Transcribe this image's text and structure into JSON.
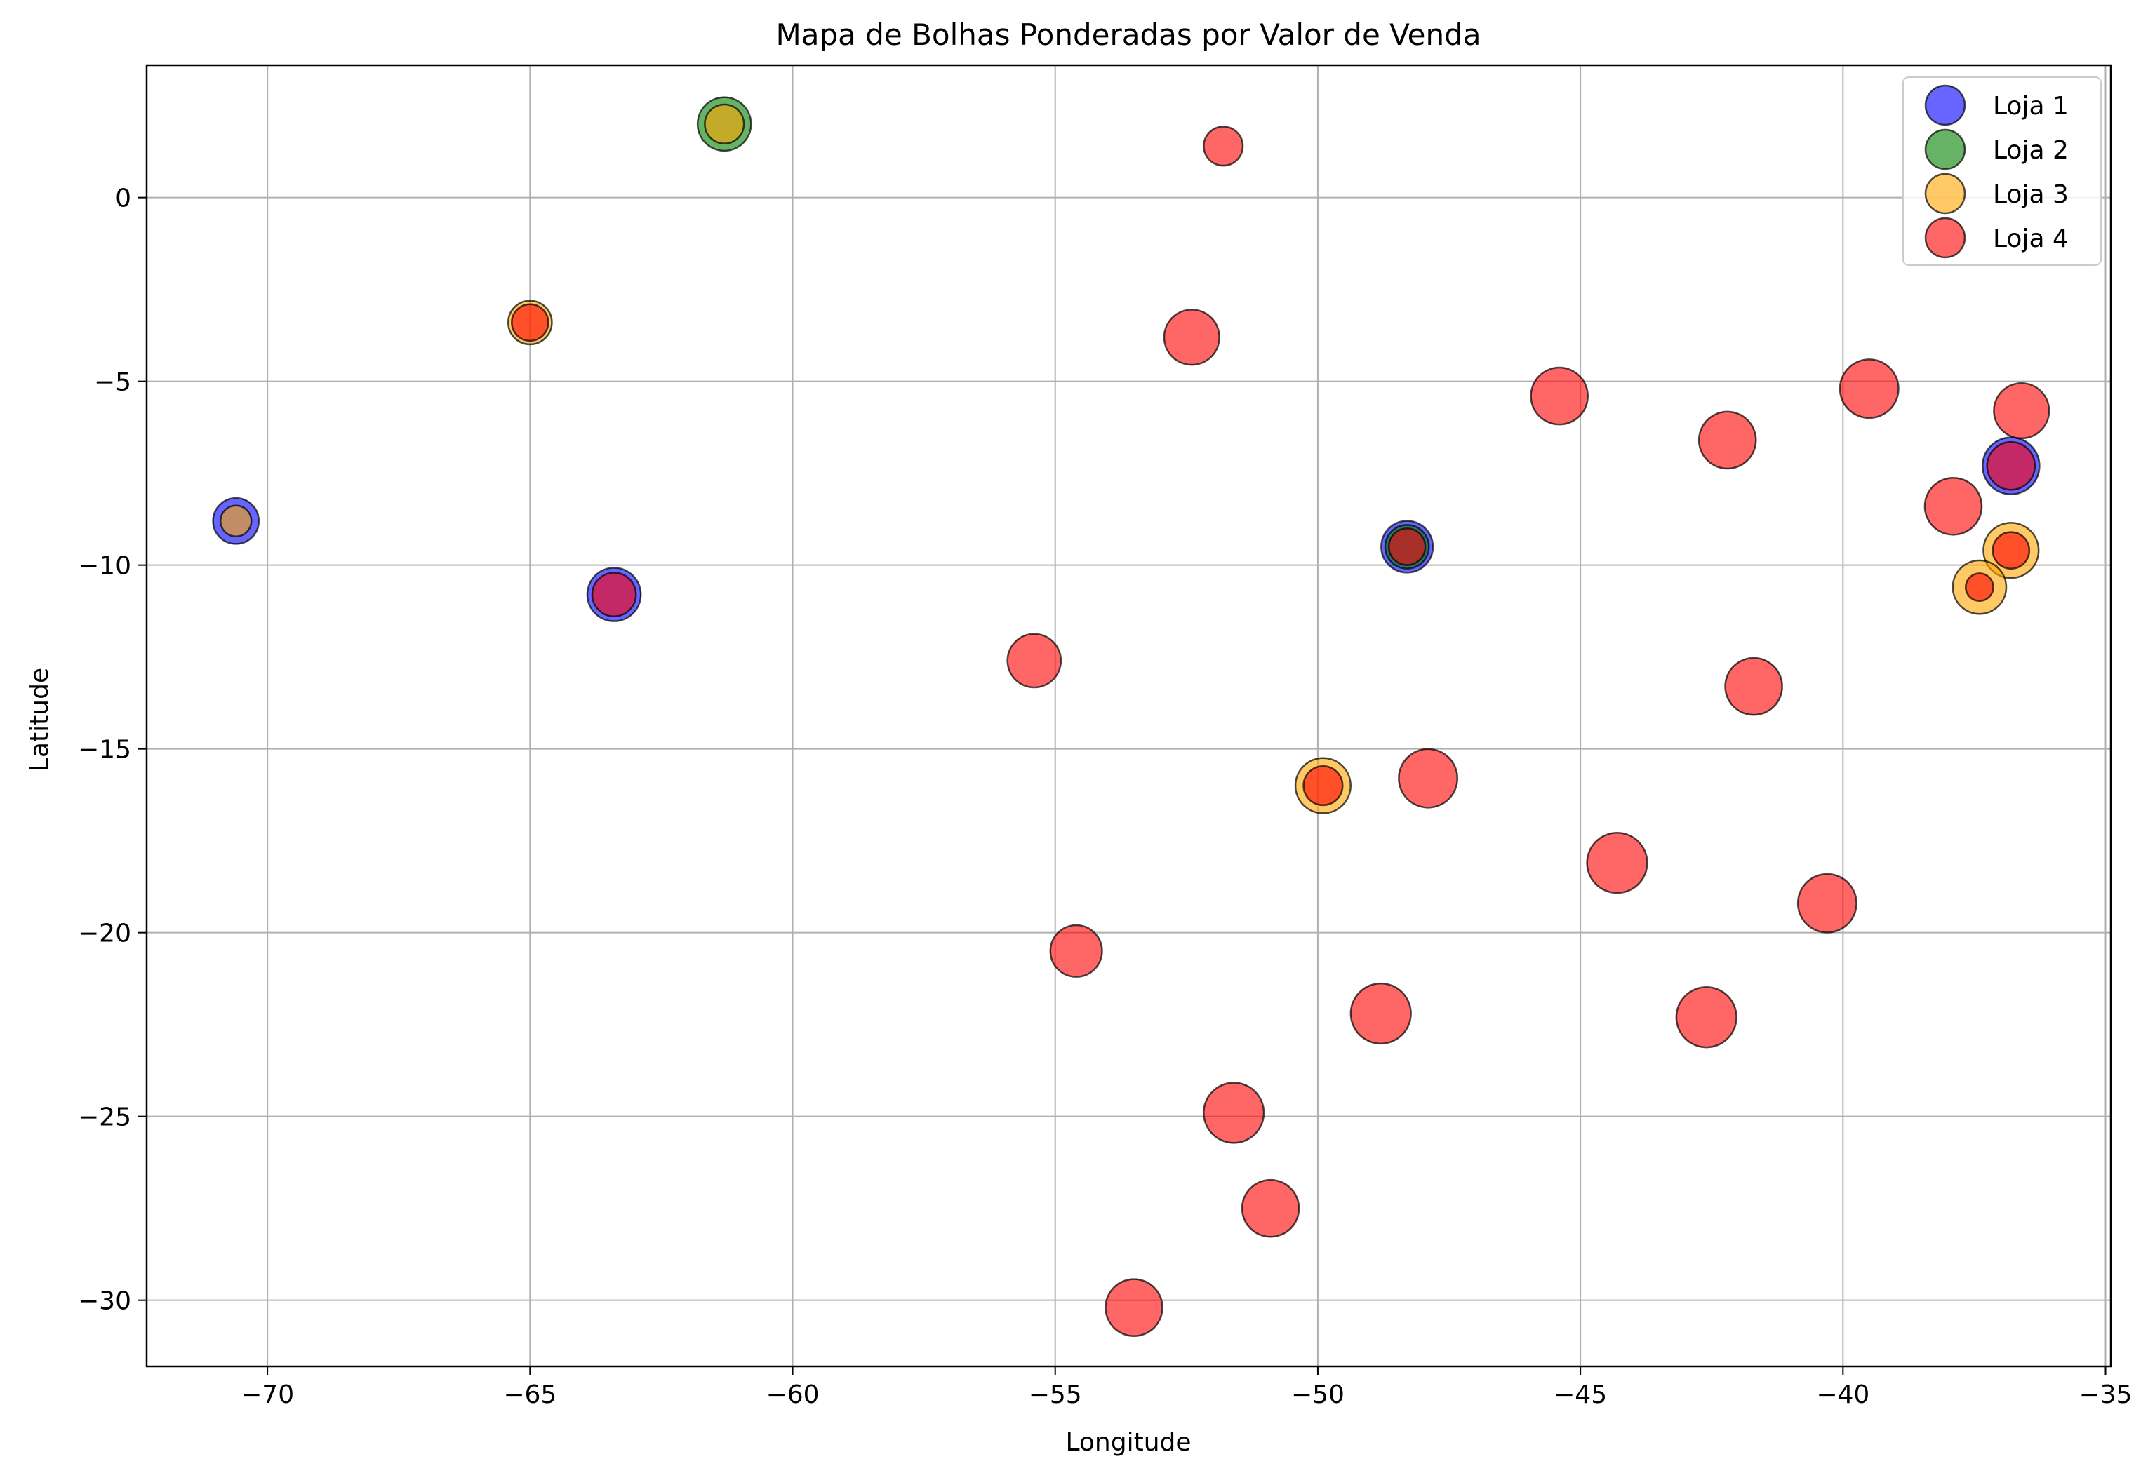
{
  "chart_data": {
    "type": "scatter",
    "title": "Mapa de Bolhas Ponderadas por Valor de Venda",
    "xlabel": "Longitude",
    "ylabel": "Latitude",
    "xlim": [
      -72.3,
      -34.9
    ],
    "ylim": [
      -31.8,
      3.6
    ],
    "xticks": [
      -70,
      -65,
      -60,
      -55,
      -50,
      -45,
      -40,
      -35
    ],
    "yticks": [
      0,
      -5,
      -10,
      -15,
      -20,
      -25,
      -30
    ],
    "grid": true,
    "legend_position": "top-right",
    "colors": {
      "Loja 1": "#0000ff",
      "Loja 2": "#008000",
      "Loja 3": "#ffa500",
      "Loja 4": "#ff0000"
    },
    "series": [
      {
        "name": "Loja 1",
        "points": [
          {
            "x": -70.6,
            "y": -8.8,
            "size": 0.55
          },
          {
            "x": -63.4,
            "y": -10.8,
            "size": 0.75
          },
          {
            "x": -48.3,
            "y": -9.5,
            "size": 0.7
          },
          {
            "x": -36.8,
            "y": -7.3,
            "size": 0.85
          }
        ]
      },
      {
        "name": "Loja 2",
        "points": [
          {
            "x": -61.3,
            "y": 2.0,
            "size": 0.75
          },
          {
            "x": -48.3,
            "y": -9.5,
            "size": 0.5
          }
        ]
      },
      {
        "name": "Loja 3",
        "points": [
          {
            "x": -70.6,
            "y": -8.8,
            "size": 0.25
          },
          {
            "x": -61.3,
            "y": 2.0,
            "size": 0.4
          },
          {
            "x": -65.0,
            "y": -3.4,
            "size": 0.5
          },
          {
            "x": -49.9,
            "y": -16.0,
            "size": 0.8
          },
          {
            "x": -36.8,
            "y": -9.6,
            "size": 0.8
          },
          {
            "x": -37.4,
            "y": -10.6,
            "size": 0.75
          }
        ]
      },
      {
        "name": "Loja 4",
        "points": [
          {
            "x": -51.8,
            "y": 1.4,
            "size": 0.4
          },
          {
            "x": -65.0,
            "y": -3.4,
            "size": 0.35
          },
          {
            "x": -52.4,
            "y": -3.8,
            "size": 0.8
          },
          {
            "x": -45.4,
            "y": -5.4,
            "size": 0.85
          },
          {
            "x": -39.5,
            "y": -5.2,
            "size": 0.9
          },
          {
            "x": -36.6,
            "y": -5.8,
            "size": 0.8
          },
          {
            "x": -36.8,
            "y": -7.3,
            "size": 0.6
          },
          {
            "x": -42.2,
            "y": -6.6,
            "size": 0.85
          },
          {
            "x": -37.9,
            "y": -8.4,
            "size": 0.85
          },
          {
            "x": -48.3,
            "y": -9.5,
            "size": 0.35
          },
          {
            "x": -36.8,
            "y": -9.6,
            "size": 0.35
          },
          {
            "x": -37.4,
            "y": -10.6,
            "size": 0.2
          },
          {
            "x": -63.4,
            "y": -10.8,
            "size": 0.5
          },
          {
            "x": -55.4,
            "y": -12.6,
            "size": 0.75
          },
          {
            "x": -41.7,
            "y": -13.3,
            "size": 0.85
          },
          {
            "x": -47.9,
            "y": -15.8,
            "size": 0.9
          },
          {
            "x": -49.9,
            "y": -16.0,
            "size": 0.4
          },
          {
            "x": -44.3,
            "y": -18.1,
            "size": 0.95
          },
          {
            "x": -40.3,
            "y": -19.2,
            "size": 0.9
          },
          {
            "x": -54.6,
            "y": -20.5,
            "size": 0.7
          },
          {
            "x": -48.8,
            "y": -22.2,
            "size": 0.95
          },
          {
            "x": -42.6,
            "y": -22.3,
            "size": 0.95
          },
          {
            "x": -51.6,
            "y": -24.9,
            "size": 0.95
          },
          {
            "x": -50.9,
            "y": -27.5,
            "size": 0.85
          },
          {
            "x": -53.5,
            "y": -30.2,
            "size": 0.85
          }
        ]
      }
    ]
  }
}
